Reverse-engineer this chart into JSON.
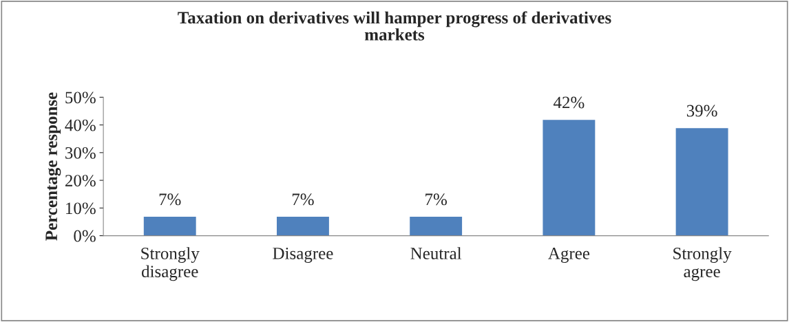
{
  "chart_data": {
    "type": "bar",
    "title": "Taxation on derivatives will hamper progress of derivatives\nmarkets",
    "ylabel": "Percentage response",
    "categories": [
      "Strongly\ndisagree",
      "Disagree",
      "Neutral",
      "Agree",
      "Strongly\nagree"
    ],
    "values": [
      7,
      7,
      7,
      42,
      39
    ],
    "color": "#4f81bd",
    "value_labels": [
      "7%",
      "7%",
      "7%",
      "42%",
      "39%"
    ],
    "ylim": [
      0,
      50
    ],
    "yticks": [
      {
        "value": 0,
        "label": "0%"
      },
      {
        "value": 10,
        "label": "10%"
      },
      {
        "value": 20,
        "label": "20%"
      },
      {
        "value": 30,
        "label": "30%"
      },
      {
        "value": 40,
        "label": "40%"
      },
      {
        "value": 50,
        "label": "50%"
      }
    ],
    "grid": false
  }
}
